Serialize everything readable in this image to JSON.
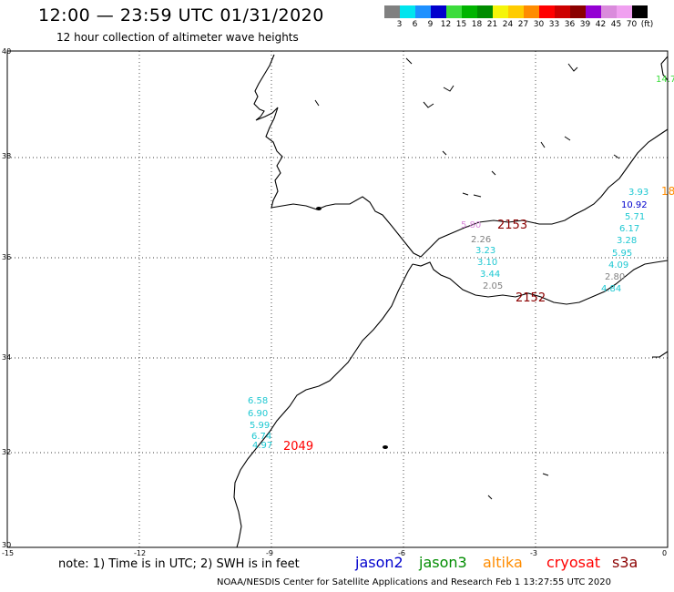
{
  "header": {
    "title": "12:00 — 23:59 UTC 01/31/2020",
    "subtitle": "12 hour collection of altimeter wave heights"
  },
  "scale": {
    "labels": [
      "3",
      "6",
      "9",
      "12",
      "15",
      "18",
      "21",
      "24",
      "27",
      "30",
      "33",
      "36",
      "39",
      "42",
      "45",
      "70",
      "(ft)"
    ],
    "colors": [
      "#808080",
      "#00e5ee",
      "#1e90ff",
      "#0000cd",
      "#3cdc3c",
      "#00b400",
      "#008c00",
      "#f5f50a",
      "#ffcc00",
      "#ff8c00",
      "#ff0000",
      "#cd0000",
      "#8b0000",
      "#9400d3",
      "#da8bdc",
      "#f0a0f0",
      "#000000"
    ]
  },
  "axes": {
    "lat_labels": [
      "40",
      "38",
      "36",
      "34",
      "32",
      "30"
    ],
    "lon_labels": [
      "-15",
      "-12",
      "-9",
      "-6",
      "-3",
      "0"
    ]
  },
  "wave_labels": [
    {
      "text": "6.58",
      "color": "#1ec8d2"
    },
    {
      "text": "6.90",
      "color": "#1ec8d2"
    },
    {
      "text": "5.99",
      "color": "#1ec8d2"
    },
    {
      "text": "6.74",
      "color": "#1ec8d2"
    },
    {
      "text": "4.97",
      "color": "#1ec8d2"
    },
    {
      "text": "5.80",
      "color": "#da8bdc"
    },
    {
      "text": "2.26",
      "color": "#808080"
    },
    {
      "text": "3.23",
      "color": "#1ec8d2"
    },
    {
      "text": "3.10",
      "color": "#1ec8d2"
    },
    {
      "text": "3.44",
      "color": "#1ec8d2"
    },
    {
      "text": "2.05",
      "color": "#808080"
    },
    {
      "text": "3.93",
      "color": "#1ec8d2"
    },
    {
      "text": "10.92",
      "color": "#0000cd"
    },
    {
      "text": "5.71",
      "color": "#1ec8d2"
    },
    {
      "text": "6.17",
      "color": "#1ec8d2"
    },
    {
      "text": "3.28",
      "color": "#1ec8d2"
    },
    {
      "text": "5.95",
      "color": "#1ec8d2"
    },
    {
      "text": "4.09",
      "color": "#1ec8d2"
    },
    {
      "text": "2.80",
      "color": "#808080"
    },
    {
      "text": "4.84",
      "color": "#1ec8d2"
    },
    {
      "text": "14.7",
      "color": "#3cdc3c"
    },
    {
      "text": "18",
      "color": "#ff8c00"
    }
  ],
  "pass_labels": [
    {
      "text": "2049",
      "color": "#ff0000"
    },
    {
      "text": "2153",
      "color": "#8b0000"
    },
    {
      "text": "2152",
      "color": "#8b0000"
    }
  ],
  "note": "note: 1) Time is in UTC; 2) SWH is in feet",
  "legend": [
    {
      "text": "jason2",
      "color": "#0000cd"
    },
    {
      "text": "jason3",
      "color": "#008c00"
    },
    {
      "text": "altika",
      "color": "#ff8c00"
    },
    {
      "text": "cryosat",
      "color": "#ff0000"
    },
    {
      "text": "s3a",
      "color": "#8b0000"
    }
  ],
  "footer": "NOAA/NESDIS Center for Satellite Applications and Research   Feb  1 13:27:55 UTC 2020"
}
